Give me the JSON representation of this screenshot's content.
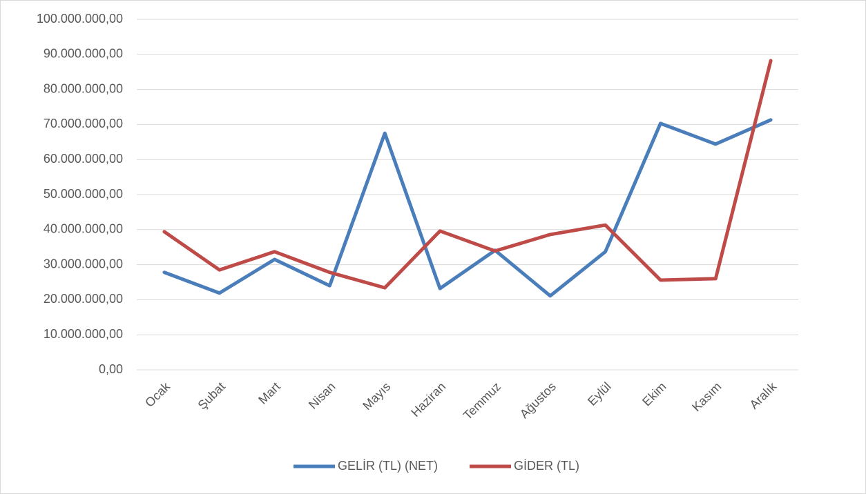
{
  "chart_data": {
    "type": "line",
    "categories": [
      "Ocak",
      "Şubat",
      "Mart",
      "Nisan",
      "Mayıs",
      "Haziran",
      "Temmuz",
      "Ağustos",
      "Eylül",
      "Ekim",
      "Kasım",
      "Aralık"
    ],
    "series": [
      {
        "name": "GELİR (TL) (NET)",
        "color": "#4a7ebb",
        "values": [
          27800000,
          21900000,
          31500000,
          24000000,
          67500000,
          23200000,
          34100000,
          21100000,
          33700000,
          70300000,
          64400000,
          71300000
        ]
      },
      {
        "name": "GİDER (TL)",
        "color": "#be4b48",
        "values": [
          39400000,
          28500000,
          33700000,
          27800000,
          23400000,
          39600000,
          33900000,
          38600000,
          41300000,
          25600000,
          26000000,
          88200000
        ]
      }
    ],
    "ylim": [
      0,
      100000000
    ],
    "yticks": [
      {
        "value": 0,
        "label": "0,00"
      },
      {
        "value": 10000000,
        "label": "10.000.000,00"
      },
      {
        "value": 20000000,
        "label": "20.000.000,00"
      },
      {
        "value": 30000000,
        "label": "30.000.000,00"
      },
      {
        "value": 40000000,
        "label": "40.000.000,00"
      },
      {
        "value": 50000000,
        "label": "50.000.000,00"
      },
      {
        "value": 60000000,
        "label": "60.000.000,00"
      },
      {
        "value": 70000000,
        "label": "70.000.000,00"
      },
      {
        "value": 80000000,
        "label": "80.000.000,00"
      },
      {
        "value": 90000000,
        "label": "90.000.000,00"
      },
      {
        "value": 100000000,
        "label": "100.000.000,00"
      }
    ],
    "grid": true,
    "legend": "bottom"
  }
}
